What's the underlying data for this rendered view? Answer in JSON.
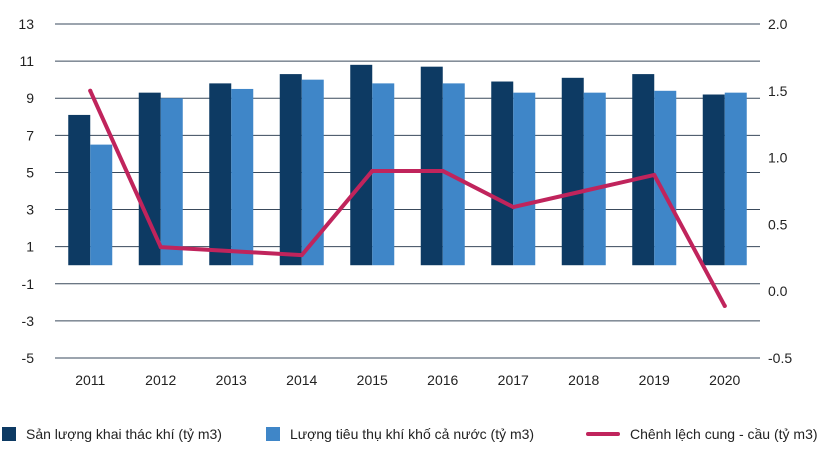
{
  "chart_data": {
    "type": "bar",
    "categories": [
      "2011",
      "2012",
      "2013",
      "2014",
      "2015",
      "2016",
      "2017",
      "2018",
      "2019",
      "2020"
    ],
    "series": [
      {
        "name": "Sản lượng khai thác khí (tỷ m3)",
        "type": "bar",
        "axis": "left",
        "color": "#0d3a63",
        "values": [
          8.1,
          9.3,
          9.8,
          10.3,
          10.8,
          10.7,
          9.9,
          10.1,
          10.3,
          9.2
        ]
      },
      {
        "name": "Lượng tiêu thụ khí khố cả nước (tỷ m3)",
        "type": "bar",
        "axis": "left",
        "color": "#3f86c8",
        "values": [
          6.5,
          9.0,
          9.5,
          10.0,
          9.8,
          9.8,
          9.3,
          9.3,
          9.4,
          9.3
        ]
      },
      {
        "name": "Chênh lệch cung - cầu (tỷ m3)",
        "type": "line",
        "axis": "right",
        "color": "#c0245c",
        "values": [
          1.5,
          0.33,
          0.3,
          0.27,
          0.9,
          0.9,
          0.63,
          0.75,
          0.87,
          -0.11
        ]
      }
    ],
    "y_left": {
      "min": -5,
      "max": 13,
      "ticks": [
        "13",
        "11",
        "9",
        "7",
        "5",
        "3",
        "1",
        "-1",
        "-3",
        "-5"
      ]
    },
    "y_right": {
      "min": -0.5,
      "max": 2.0,
      "ticks": [
        "2.0",
        "1.5",
        "1.0",
        "0.5",
        "0.0",
        "-0.5"
      ]
    },
    "grid": true,
    "legend_position": "bottom",
    "title": "",
    "xlabel": "",
    "ylabel": ""
  }
}
